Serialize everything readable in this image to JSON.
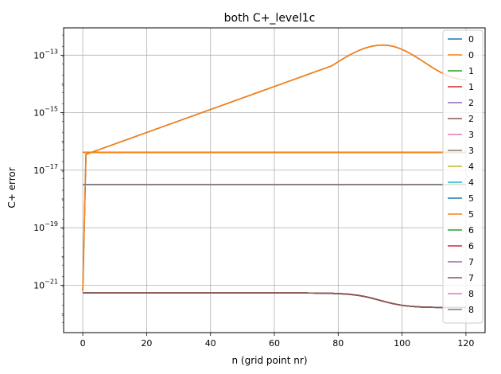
{
  "chart_data": {
    "type": "line",
    "title": "both C+_level1c",
    "xlabel": "n (grid point nr)",
    "ylabel": "C+ error",
    "y_scale": "log",
    "xlim": [
      -6,
      126
    ],
    "ylim_exp": [
      -22.65,
      -12.05
    ],
    "x_ticks": [
      0,
      20,
      40,
      60,
      80,
      100,
      120
    ],
    "y_ticks": [
      {
        "exp": -21,
        "label": "10",
        "sup": "−21"
      },
      {
        "exp": -19,
        "label": "10",
        "sup": "−19"
      },
      {
        "exp": -17,
        "label": "10",
        "sup": "−17"
      },
      {
        "exp": -15,
        "label": "10",
        "sup": "−15"
      },
      {
        "exp": -13,
        "label": "10",
        "sup": "−13"
      }
    ],
    "grid": true,
    "legend_position": "right",
    "series": [
      {
        "name": "0",
        "color": "#1f77b4",
        "shape": "rise_peak",
        "params": {
          "a": -21.2,
          "b": -16.45,
          "peak": -12.65,
          "peakN": 94,
          "end": -13.85
        }
      },
      {
        "name": "0",
        "color": "#ff7f0e",
        "shape": "rise_peak",
        "params": {
          "a": -21.2,
          "b": -16.45,
          "peak": -12.65,
          "peakN": 94,
          "end": -13.85
        }
      },
      {
        "name": "1",
        "color": "#2ca02c",
        "shape": "decay",
        "params": {
          "flat": -21.27,
          "low": -21.78
        }
      },
      {
        "name": "1",
        "color": "#d62728",
        "shape": "decay",
        "params": {
          "flat": -21.27,
          "low": -21.78
        }
      },
      {
        "name": "2",
        "color": "#9467bd",
        "shape": "decay",
        "params": {
          "flat": -21.27,
          "low": -21.78
        }
      },
      {
        "name": "2",
        "color": "#8c564b",
        "shape": "decay",
        "params": {
          "flat": -21.27,
          "low": -21.78
        }
      },
      {
        "name": "3",
        "color": "#e377c2",
        "shape": "flat",
        "params": {
          "v": -17.5
        }
      },
      {
        "name": "3",
        "color": "#7f7f7f",
        "shape": "flat",
        "params": {
          "v": -17.5
        }
      },
      {
        "name": "4",
        "color": "#bcbd22",
        "shape": "flat",
        "params": {
          "v": -16.38
        }
      },
      {
        "name": "4",
        "color": "#17becf",
        "shape": "flat",
        "params": {
          "v": -16.38
        }
      },
      {
        "name": "5",
        "color": "#1f77b4",
        "shape": "flat",
        "params": {
          "v": -16.38
        }
      },
      {
        "name": "5",
        "color": "#ff7f0e",
        "shape": "flat",
        "params": {
          "v": -16.38
        }
      },
      {
        "name": "6",
        "color": "#2ca02c",
        "shape": "decay",
        "params": {
          "flat": -21.27,
          "low": -21.78
        }
      },
      {
        "name": "6",
        "color": "#d62728",
        "shape": "decay",
        "params": {
          "flat": -21.27,
          "low": -21.78
        }
      },
      {
        "name": "7",
        "color": "#9467bd",
        "shape": "decay",
        "params": {
          "flat": -21.27,
          "low": -21.78
        }
      },
      {
        "name": "7",
        "color": "#8c564b",
        "shape": "decay",
        "params": {
          "flat": -21.27,
          "low": -21.78
        }
      },
      {
        "name": "8",
        "color": "#e377c2",
        "shape": "flat",
        "params": {
          "v": -17.5
        }
      },
      {
        "name": "8",
        "color": "#7f7f7f",
        "shape": "flat",
        "params": {
          "v": -17.5
        }
      }
    ]
  }
}
